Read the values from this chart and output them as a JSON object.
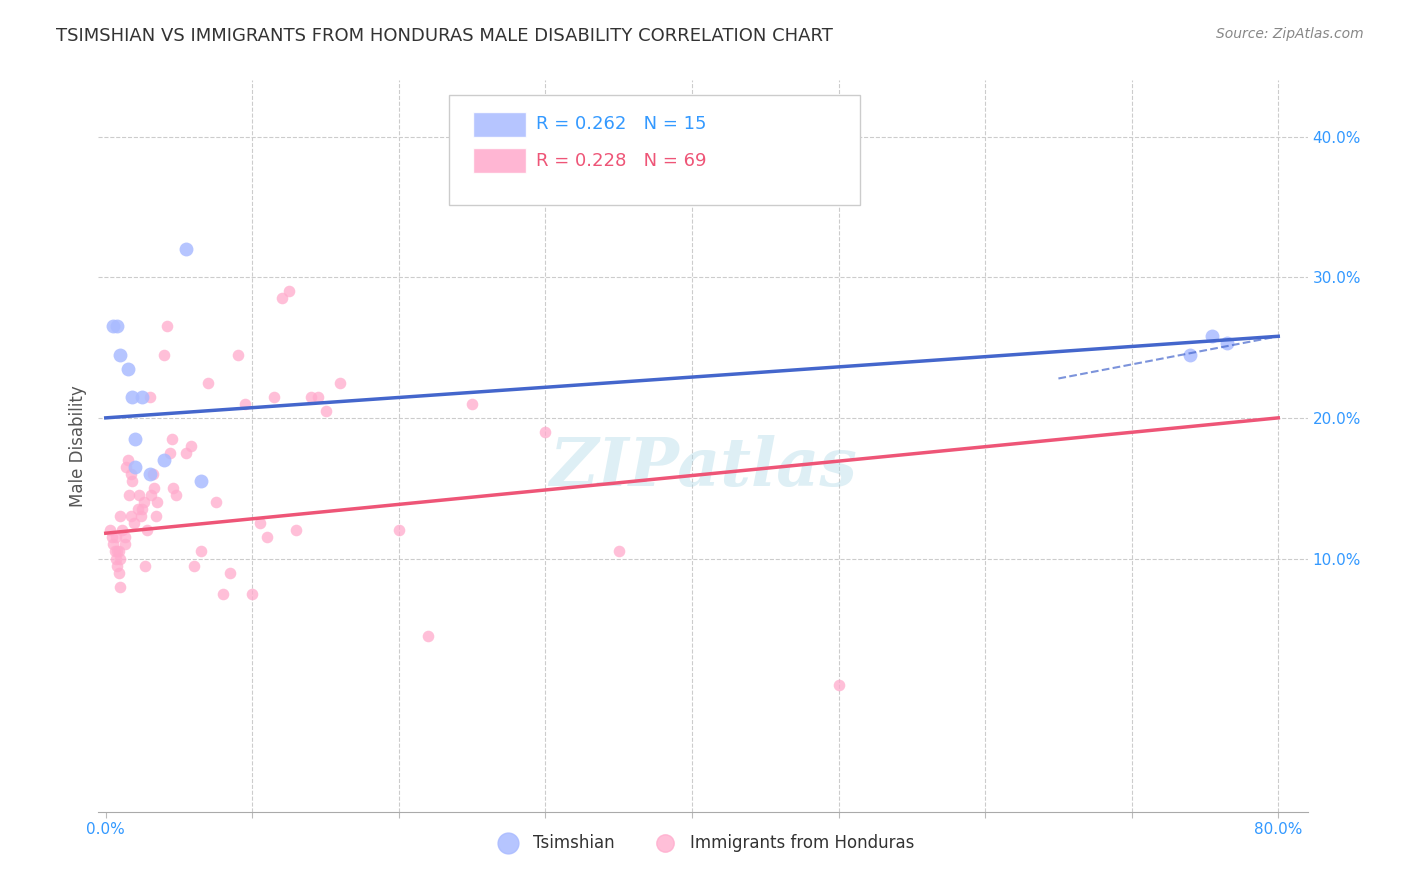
{
  "title": "TSIMSHIAN VS IMMIGRANTS FROM HONDURAS MALE DISABILITY CORRELATION CHART",
  "source": "Source: ZipAtlas.com",
  "ylabel": "Male Disability",
  "xlim": [
    -0.005,
    0.82
  ],
  "ylim": [
    -0.08,
    0.44
  ],
  "yticks_right": [
    0.1,
    0.2,
    0.3,
    0.4
  ],
  "ytick_labels_right": [
    "10.0%",
    "20.0%",
    "30.0%",
    "40.0%"
  ],
  "grid_color": "#cccccc",
  "background_color": "#ffffff",
  "watermark": "ZIPatlas",
  "legend_r1": "R = 0.262",
  "legend_n1": "N = 15",
  "legend_r2": "R = 0.228",
  "legend_n2": "N = 69",
  "tsimshian_color": "#aabbff",
  "honduras_color": "#ffaacc",
  "tsimshian_marker_size": 100,
  "honduras_marker_size": 70,
  "tsimshian_x": [
    0.005,
    0.008,
    0.01,
    0.015,
    0.018,
    0.02,
    0.02,
    0.025,
    0.03,
    0.04,
    0.055,
    0.065,
    0.74,
    0.755,
    0.765
  ],
  "tsimshian_y": [
    0.265,
    0.265,
    0.245,
    0.235,
    0.215,
    0.185,
    0.165,
    0.215,
    0.16,
    0.17,
    0.32,
    0.155,
    0.245,
    0.258,
    0.253
  ],
  "honduras_x": [
    0.003,
    0.004,
    0.005,
    0.006,
    0.007,
    0.007,
    0.008,
    0.008,
    0.009,
    0.009,
    0.01,
    0.01,
    0.01,
    0.011,
    0.013,
    0.013,
    0.014,
    0.015,
    0.016,
    0.017,
    0.017,
    0.018,
    0.019,
    0.022,
    0.023,
    0.024,
    0.025,
    0.026,
    0.027,
    0.028,
    0.03,
    0.031,
    0.032,
    0.033,
    0.034,
    0.035,
    0.04,
    0.042,
    0.044,
    0.045,
    0.046,
    0.048,
    0.055,
    0.058,
    0.06,
    0.065,
    0.07,
    0.075,
    0.08,
    0.085,
    0.09,
    0.095,
    0.1,
    0.105,
    0.11,
    0.115,
    0.12,
    0.125,
    0.13,
    0.14,
    0.145,
    0.15,
    0.16,
    0.2,
    0.22,
    0.25,
    0.3,
    0.35,
    0.5
  ],
  "honduras_y": [
    0.12,
    0.115,
    0.11,
    0.105,
    0.115,
    0.1,
    0.105,
    0.095,
    0.105,
    0.09,
    0.1,
    0.08,
    0.13,
    0.12,
    0.11,
    0.115,
    0.165,
    0.17,
    0.145,
    0.16,
    0.13,
    0.155,
    0.125,
    0.135,
    0.145,
    0.13,
    0.135,
    0.14,
    0.095,
    0.12,
    0.215,
    0.145,
    0.16,
    0.15,
    0.13,
    0.14,
    0.245,
    0.265,
    0.175,
    0.185,
    0.15,
    0.145,
    0.175,
    0.18,
    0.095,
    0.105,
    0.225,
    0.14,
    0.075,
    0.09,
    0.245,
    0.21,
    0.075,
    0.125,
    0.115,
    0.215,
    0.285,
    0.29,
    0.12,
    0.215,
    0.215,
    0.205,
    0.225,
    0.12,
    0.045,
    0.21,
    0.19,
    0.105,
    0.01
  ],
  "blue_line_x": [
    0.0,
    0.8
  ],
  "blue_line_y": [
    0.2,
    0.258
  ],
  "pink_line_x": [
    0.0,
    0.8
  ],
  "pink_line_y": [
    0.118,
    0.2
  ],
  "dashed_line_x": [
    0.65,
    0.8
  ],
  "dashed_line_y": [
    0.228,
    0.258
  ],
  "blue_line_color": "#4466cc",
  "pink_line_color": "#ee5577",
  "axis_label_color": "#3399ff",
  "title_color": "#333333",
  "title_fontsize": 13,
  "axis_tick_fontsize": 11
}
